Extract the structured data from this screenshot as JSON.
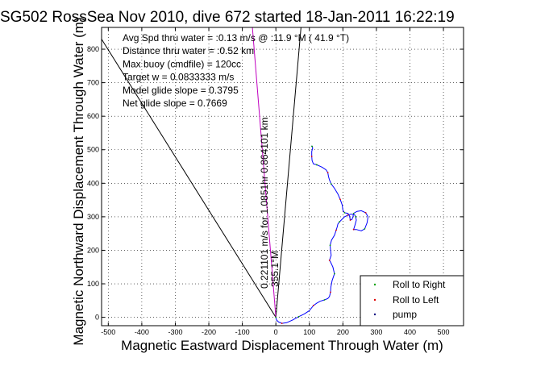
{
  "chart_data": {
    "type": "line",
    "title": "SG502 RossSea Nov 2010, dive 672 started 18-Jan-2011 16:22:19",
    "xlabel": "Magnetic Eastward Displacement Through Water (m)",
    "ylabel": "Magnetic Northward Displacement Through Water (m)",
    "xlim": [
      -520,
      560
    ],
    "ylim": [
      -25,
      865
    ],
    "xticks": [
      -500,
      -400,
      -300,
      -200,
      -100,
      0,
      100,
      200,
      300,
      400,
      500
    ],
    "yticks": [
      0,
      100,
      200,
      300,
      400,
      500,
      600,
      700,
      800
    ],
    "grid": true,
    "annotations": [
      "Avg Spd thru water = :0.13 m/s @ :11.9   °M ( 41.9 °T)",
      "Distance thru water = :0.52 km",
      "Max buoy (cmdfile) = 120cc",
      "Target w = 0.0833333 m/s",
      "Model glide slope = 0.3795",
      "Net glide slope = 0.7669"
    ],
    "heading_labels": [
      "0.221101 m/s for 1.0851hr 0.864101 km",
      "355.1°M"
    ],
    "heading_lines": [
      {
        "name": "heading-line-left",
        "from": [
          0,
          0
        ],
        "to": [
          -520,
          830
        ]
      },
      {
        "name": "heading-line-right",
        "from": [
          0,
          0
        ],
        "to": [
          75,
          865
        ]
      },
      {
        "name": "heading-line-magenta",
        "from": [
          0,
          0
        ],
        "to": [
          -70,
          865
        ]
      }
    ],
    "legend": {
      "placement": "bottom-right",
      "entries": [
        {
          "label": "Roll to Right",
          "color": "#00a000"
        },
        {
          "label": "Roll to Left",
          "color": "#e00000"
        },
        {
          "label": "pump",
          "color": "#000080"
        }
      ]
    },
    "series": [
      {
        "name": "track",
        "color": "#0000ff",
        "x": [
          0,
          2,
          8,
          18,
          32,
          50,
          68,
          85,
          100,
          112,
          122,
          132,
          145,
          155,
          160,
          163,
          164,
          168,
          175,
          170,
          163,
          160,
          165,
          163,
          162,
          166,
          175,
          180,
          183,
          185,
          190,
          195,
          205,
          215,
          224,
          235,
          238,
          240,
          236,
          232,
          240,
          255,
          265,
          272,
          275,
          268,
          255,
          242,
          232,
          230,
          227,
          222,
          220,
          215,
          205,
          200,
          198,
          192,
          185,
          175,
          165,
          160,
          157,
          155,
          150,
          138,
          122,
          112,
          108,
          107,
          107,
          110,
          108,
          106
        ],
        "y": [
          0,
          -8,
          -14,
          -18,
          -16,
          -8,
          2,
          10,
          20,
          35,
          42,
          48,
          52,
          56,
          62,
          75,
          90,
          110,
          130,
          150,
          165,
          170,
          185,
          200,
          215,
          230,
          245,
          260,
          270,
          278,
          285,
          290,
          300,
          305,
          308,
          306,
          300,
          290,
          275,
          262,
          262,
          258,
          264,
          282,
          300,
          312,
          318,
          316,
          310,
          300,
          292,
          290,
          302,
          310,
          312,
          320,
          335,
          352,
          368,
          385,
          398,
          410,
          420,
          432,
          440,
          448,
          455,
          458,
          468,
          480,
          495,
          505,
          510,
          512
        ]
      }
    ]
  },
  "legend": {
    "right_label": "Roll to Right",
    "left_label": "Roll to Left",
    "pump_label": "pump"
  }
}
